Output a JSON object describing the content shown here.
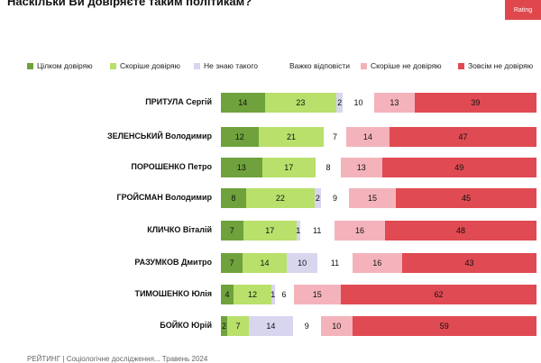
{
  "title": "Наскільки Ви довіряєте таким політикам?",
  "corner_logo": "Rating",
  "colors": {
    "full_trust": "#6fa23c",
    "rather_trust": "#b8e06b",
    "dont_know": "#d8d6ef",
    "hard_to_say": "#ffffff",
    "rather_distrust": "#f4b3bb",
    "no_trust": "#e04a52"
  },
  "chart_data": {
    "type": "bar",
    "stacked": true,
    "orientation": "horizontal",
    "legend_position": "top",
    "categories": [
      "ПРИТУЛА Сергій",
      "ЗЕЛЕНСЬКИЙ Володимир",
      "ПОРОШЕНКО Петро",
      "ГРОЙСМАН Володимир",
      "КЛИЧКО Віталій",
      "РАЗУМКОВ Дмитро",
      "ТИМОШЕНКО Юлія",
      "БОЙКО Юрій"
    ],
    "series": [
      {
        "name": "Цілком довіряю",
        "key": "full_trust",
        "values": [
          14,
          12,
          13,
          8,
          7,
          7,
          4,
          2
        ]
      },
      {
        "name": "Скоріше довіряю",
        "key": "rather_trust",
        "values": [
          23,
          21,
          17,
          22,
          17,
          14,
          12,
          7
        ]
      },
      {
        "name": "Не знаю такого",
        "key": "dont_know",
        "values": [
          2,
          0,
          0,
          2,
          1,
          10,
          1,
          14
        ]
      },
      {
        "name": "Важко відповісти",
        "key": "hard_to_say",
        "values": [
          10,
          7,
          8,
          9,
          11,
          11,
          6,
          9
        ]
      },
      {
        "name": "Скоріше не довіряю",
        "key": "rather_distrust",
        "values": [
          13,
          14,
          13,
          15,
          16,
          16,
          15,
          10
        ]
      },
      {
        "name": "Зовсім не довіряю",
        "key": "no_trust",
        "values": [
          39,
          47,
          49,
          45,
          48,
          43,
          62,
          59
        ]
      }
    ],
    "xlim": [
      0,
      100
    ]
  },
  "footer": "РЕЙТИНГ | Соціологічне дослідження... Травень 2024"
}
